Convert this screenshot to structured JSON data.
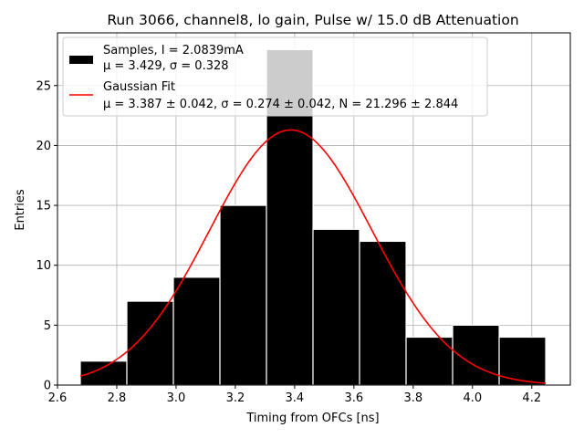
{
  "chart_data": {
    "type": "bar",
    "title": "Run 3066, channel8, lo gain, Pulse w/ 15.0 dB Attenuation",
    "xlabel": "Timing from OFCs [ns]",
    "ylabel": "Entries",
    "xlim": [
      2.6,
      4.33
    ],
    "ylim": [
      0,
      29.4
    ],
    "xticks": [
      "2.6",
      "2.8",
      "3.0",
      "3.2",
      "3.4",
      "3.6",
      "3.8",
      "4.0",
      "4.2"
    ],
    "yticks": [
      "0",
      "5",
      "10",
      "15",
      "20",
      "25"
    ],
    "grid": true,
    "bins": [
      {
        "left": 2.677,
        "right": 2.834,
        "count": 2
      },
      {
        "left": 2.834,
        "right": 2.991,
        "count": 7
      },
      {
        "left": 2.991,
        "right": 3.148,
        "count": 9
      },
      {
        "left": 3.148,
        "right": 3.305,
        "count": 15
      },
      {
        "left": 3.305,
        "right": 3.462,
        "count": 28
      },
      {
        "left": 3.462,
        "right": 3.619,
        "count": 13
      },
      {
        "left": 3.619,
        "right": 3.776,
        "count": 12
      },
      {
        "left": 3.776,
        "right": 3.933,
        "count": 4
      },
      {
        "left": 3.933,
        "right": 4.09,
        "count": 5
      },
      {
        "left": 4.09,
        "right": 4.247,
        "count": 4
      }
    ],
    "fit": {
      "mu": 3.387,
      "sigma": 0.274,
      "N": 21.296,
      "x_range": [
        2.677,
        4.247
      ],
      "color": "#ff0000"
    },
    "bar_color": "#000000",
    "bar_edge_color": "#ffffff",
    "legend": {
      "position": "upper-left",
      "samples_line1": "Samples, I = 2.0839mA",
      "samples_line2": "μ = 3.429, σ = 0.328",
      "fit_line1": "Gaussian Fit",
      "fit_line2": "μ = 3.387 ± 0.042, σ = 0.274 ± 0.042, N = 21.296 ± 2.844"
    }
  }
}
